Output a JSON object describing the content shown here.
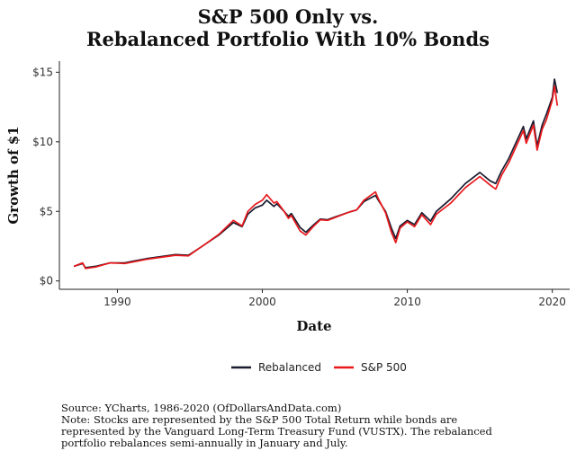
{
  "chart_data": {
    "type": "line",
    "title_lines": [
      "S&P 500 Only vs.",
      "Rebalanced Portfolio With 10% Bonds"
    ],
    "xlabel": "Date",
    "ylabel": "Growth of $1",
    "xlim": [
      1986,
      2021.2
    ],
    "ylim": [
      -0.6,
      15.8
    ],
    "x_ticks": [
      1990,
      2000,
      2010,
      2020
    ],
    "x_tick_labels": [
      "1990",
      "2000",
      "2010",
      "2020"
    ],
    "y_ticks": [
      0,
      5,
      10,
      15
    ],
    "y_tick_labels": [
      "$0",
      "$5",
      "$10",
      "$15"
    ],
    "legend_position": "bottom-center",
    "series": [
      {
        "name": "Rebalanced",
        "color": "#1a1a2e",
        "points": [
          [
            1987.0,
            1.05
          ],
          [
            1987.6,
            1.25
          ],
          [
            1987.8,
            0.95
          ],
          [
            1988.5,
            1.05
          ],
          [
            1989.5,
            1.3
          ],
          [
            1990.5,
            1.3
          ],
          [
            1991.0,
            1.4
          ],
          [
            1992.0,
            1.6
          ],
          [
            1993.0,
            1.75
          ],
          [
            1994.0,
            1.9
          ],
          [
            1994.9,
            1.85
          ],
          [
            1995.5,
            2.25
          ],
          [
            1996.0,
            2.6
          ],
          [
            1997.0,
            3.3
          ],
          [
            1998.0,
            4.2
          ],
          [
            1998.6,
            3.9
          ],
          [
            1999.0,
            4.8
          ],
          [
            1999.5,
            5.25
          ],
          [
            2000.0,
            5.45
          ],
          [
            2000.3,
            5.8
          ],
          [
            2000.8,
            5.35
          ],
          [
            2001.0,
            5.55
          ],
          [
            2001.5,
            5.0
          ],
          [
            2001.8,
            4.65
          ],
          [
            2002.0,
            4.85
          ],
          [
            2002.6,
            3.85
          ],
          [
            2003.0,
            3.5
          ],
          [
            2003.5,
            4.0
          ],
          [
            2004.0,
            4.45
          ],
          [
            2004.5,
            4.4
          ],
          [
            2005.0,
            4.6
          ],
          [
            2006.0,
            4.95
          ],
          [
            2006.5,
            5.1
          ],
          [
            2007.0,
            5.7
          ],
          [
            2007.8,
            6.15
          ],
          [
            2008.0,
            5.8
          ],
          [
            2008.5,
            5.0
          ],
          [
            2008.9,
            3.8
          ],
          [
            2009.2,
            3.05
          ],
          [
            2009.5,
            3.95
          ],
          [
            2010.0,
            4.35
          ],
          [
            2010.5,
            4.05
          ],
          [
            2011.0,
            4.9
          ],
          [
            2011.6,
            4.3
          ],
          [
            2012.0,
            5.0
          ],
          [
            2013.0,
            5.9
          ],
          [
            2014.0,
            7.0
          ],
          [
            2015.0,
            7.8
          ],
          [
            2015.7,
            7.2
          ],
          [
            2016.1,
            7.0
          ],
          [
            2016.5,
            7.9
          ],
          [
            2017.0,
            8.8
          ],
          [
            2018.0,
            11.1
          ],
          [
            2018.2,
            10.2
          ],
          [
            2018.7,
            11.5
          ],
          [
            2018.95,
            9.7
          ],
          [
            2019.3,
            11.2
          ],
          [
            2019.6,
            12.0
          ],
          [
            2020.0,
            13.2
          ],
          [
            2020.15,
            14.5
          ],
          [
            2020.35,
            13.5
          ]
        ]
      },
      {
        "name": "S&P 500",
        "color": "#e8181b",
        "points": [
          [
            1987.0,
            1.05
          ],
          [
            1987.6,
            1.3
          ],
          [
            1987.8,
            0.9
          ],
          [
            1988.5,
            1.0
          ],
          [
            1989.5,
            1.3
          ],
          [
            1990.5,
            1.25
          ],
          [
            1991.0,
            1.35
          ],
          [
            1992.0,
            1.55
          ],
          [
            1993.0,
            1.7
          ],
          [
            1994.0,
            1.85
          ],
          [
            1994.9,
            1.8
          ],
          [
            1995.5,
            2.25
          ],
          [
            1996.0,
            2.6
          ],
          [
            1997.0,
            3.35
          ],
          [
            1998.0,
            4.35
          ],
          [
            1998.6,
            3.95
          ],
          [
            1999.0,
            5.0
          ],
          [
            1999.5,
            5.5
          ],
          [
            2000.0,
            5.8
          ],
          [
            2000.3,
            6.2
          ],
          [
            2000.8,
            5.6
          ],
          [
            2001.0,
            5.7
          ],
          [
            2001.5,
            5.0
          ],
          [
            2001.8,
            4.5
          ],
          [
            2002.0,
            4.7
          ],
          [
            2002.6,
            3.6
          ],
          [
            2003.0,
            3.3
          ],
          [
            2003.5,
            3.9
          ],
          [
            2004.0,
            4.4
          ],
          [
            2004.5,
            4.35
          ],
          [
            2005.0,
            4.55
          ],
          [
            2006.0,
            4.95
          ],
          [
            2006.5,
            5.1
          ],
          [
            2007.0,
            5.8
          ],
          [
            2007.8,
            6.4
          ],
          [
            2008.0,
            5.9
          ],
          [
            2008.5,
            4.9
          ],
          [
            2008.9,
            3.5
          ],
          [
            2009.2,
            2.75
          ],
          [
            2009.5,
            3.8
          ],
          [
            2010.0,
            4.25
          ],
          [
            2010.5,
            3.9
          ],
          [
            2011.0,
            4.75
          ],
          [
            2011.6,
            4.05
          ],
          [
            2012.0,
            4.8
          ],
          [
            2013.0,
            5.6
          ],
          [
            2014.0,
            6.7
          ],
          [
            2015.0,
            7.5
          ],
          [
            2015.7,
            6.9
          ],
          [
            2016.1,
            6.6
          ],
          [
            2016.5,
            7.6
          ],
          [
            2017.0,
            8.5
          ],
          [
            2018.0,
            10.8
          ],
          [
            2018.2,
            9.9
          ],
          [
            2018.7,
            11.2
          ],
          [
            2018.95,
            9.4
          ],
          [
            2019.3,
            10.9
          ],
          [
            2019.6,
            11.6
          ],
          [
            2020.0,
            13.0
          ],
          [
            2020.15,
            14.0
          ],
          [
            2020.35,
            12.6
          ]
        ]
      }
    ]
  },
  "source_note": [
    "Source:  YCharts, 1986-2020 (OfDollarsAndData.com)",
    "Note: Stocks are represented by the S&P 500 Total Return while bonds are",
    "represented by the Vanguard Long-Term Treasury Fund (VUSTX). The rebalanced",
    "portfolio rebalances semi-annually in January and July."
  ]
}
